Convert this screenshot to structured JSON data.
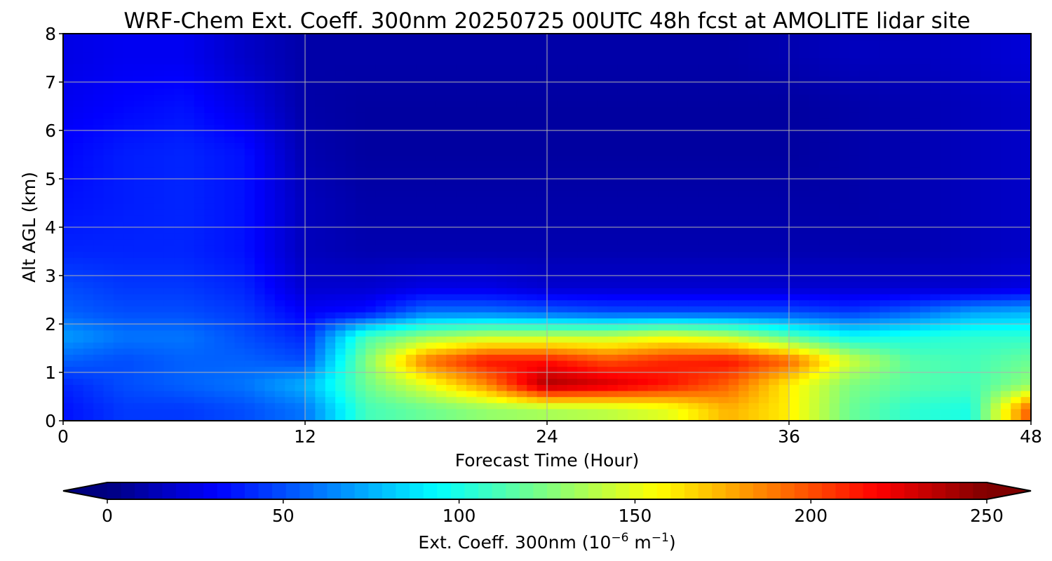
{
  "chart_data": {
    "type": "heatmap",
    "title": "WRF-Chem Ext. Coeff. 300nm  20250725 00UTC 48h fcst at AMOLITE lidar site",
    "xlabel": "Forecast Time (Hour)",
    "ylabel": "Alt AGL (km)",
    "xlim": [
      0,
      48
    ],
    "ylim": [
      0,
      8
    ],
    "xticks": [
      0,
      12,
      24,
      36,
      48
    ],
    "yticks": [
      0,
      1,
      2,
      3,
      4,
      5,
      6,
      7,
      8
    ],
    "grid": true,
    "x": [
      0,
      3,
      6,
      9,
      12,
      15,
      18,
      21,
      24,
      27,
      30,
      33,
      36,
      39,
      42,
      45,
      48
    ],
    "y": [
      0.25,
      0.75,
      1.25,
      1.75,
      2.25,
      2.75,
      3.5,
      4.5,
      5.5,
      6.5,
      7.5
    ],
    "values": [
      [
        35,
        45,
        45,
        50,
        60,
        110,
        120,
        130,
        135,
        140,
        150,
        175,
        160,
        120,
        105,
        100,
        200
      ],
      [
        40,
        50,
        55,
        60,
        75,
        120,
        150,
        185,
        240,
        230,
        215,
        195,
        160,
        125,
        115,
        110,
        130
      ],
      [
        55,
        50,
        55,
        55,
        50,
        125,
        190,
        215,
        215,
        200,
        210,
        215,
        195,
        145,
        115,
        110,
        120
      ],
      [
        70,
        60,
        60,
        50,
        40,
        110,
        130,
        140,
        140,
        140,
        150,
        140,
        115,
        95,
        100,
        105,
        105
      ],
      [
        55,
        50,
        50,
        45,
        30,
        35,
        60,
        60,
        55,
        50,
        50,
        50,
        50,
        45,
        55,
        70,
        75
      ],
      [
        50,
        45,
        45,
        40,
        20,
        20,
        25,
        25,
        20,
        20,
        20,
        20,
        20,
        20,
        20,
        20,
        25
      ],
      [
        40,
        40,
        40,
        35,
        15,
        12,
        12,
        12,
        12,
        12,
        12,
        12,
        12,
        12,
        12,
        15,
        18
      ],
      [
        35,
        38,
        40,
        35,
        15,
        10,
        10,
        10,
        10,
        10,
        10,
        10,
        10,
        10,
        12,
        15,
        18
      ],
      [
        32,
        38,
        40,
        35,
        12,
        8,
        8,
        8,
        8,
        8,
        8,
        8,
        8,
        10,
        12,
        15,
        18
      ],
      [
        28,
        32,
        35,
        25,
        10,
        8,
        8,
        8,
        8,
        8,
        8,
        8,
        8,
        10,
        12,
        15,
        18
      ],
      [
        25,
        28,
        28,
        18,
        10,
        10,
        10,
        10,
        10,
        10,
        10,
        10,
        12,
        15,
        15,
        18,
        22
      ]
    ],
    "colorbar": {
      "label": "Ext. Coeff. 300nm  (10",
      "label_exp1": "−6",
      "label_mid": " m",
      "label_exp2": "−1",
      "label_end": ")",
      "min": 0,
      "max": 250,
      "ticks": [
        0,
        50,
        100,
        150,
        200,
        250
      ],
      "extend": "both",
      "colormap": "jet"
    }
  }
}
